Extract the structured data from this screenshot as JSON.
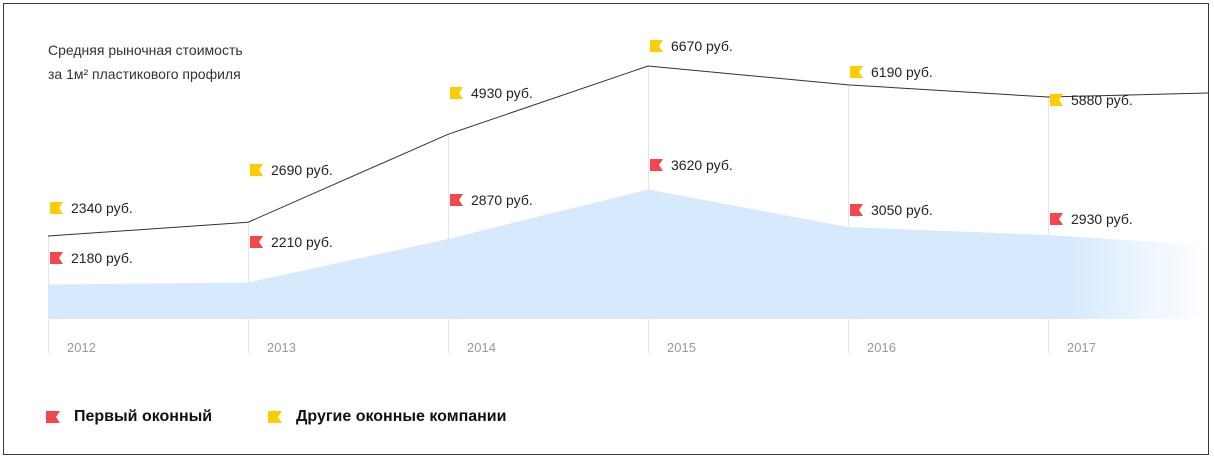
{
  "chart_data": {
    "type": "area",
    "title": "Средняя рыночная стоимость\nза 1м² пластикового профиля",
    "categories": [
      "2012",
      "2013",
      "2014",
      "2015",
      "2016",
      "2017"
    ],
    "series": [
      {
        "name": "Первый оконный",
        "values": [
          2180,
          2210,
          2870,
          3620,
          3050,
          2930
        ],
        "labels": [
          "2180 руб.",
          "2210 руб.",
          "2870 руб.",
          "3620 руб.",
          "3050 руб.",
          "2930 руб."
        ],
        "color": "#f2484b",
        "fill": "#d6e9fd",
        "style": "area"
      },
      {
        "name": "Другие оконные компании",
        "values": [
          2340,
          2690,
          4930,
          6670,
          6190,
          5880
        ],
        "labels": [
          "2340 руб.",
          "2690 руб.",
          "4930 руб.",
          "6670 руб.",
          "6190 руб.",
          "5880 руб."
        ],
        "color": "#ffcc00",
        "line_color": "#333333",
        "style": "line"
      }
    ],
    "legend_position": "bottom-left",
    "grid": "vertical"
  }
}
